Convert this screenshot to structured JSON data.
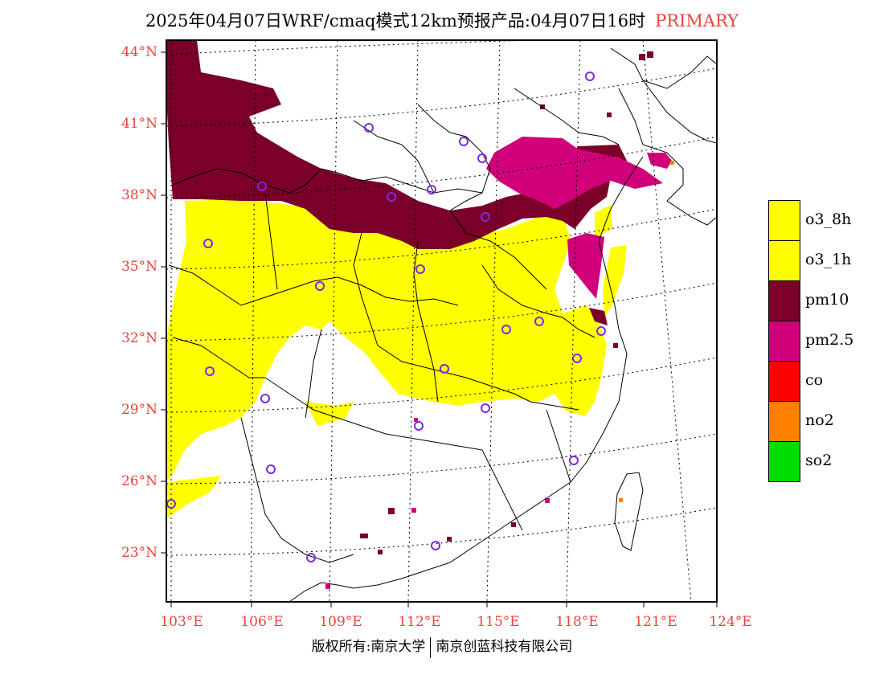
{
  "title": {
    "text": "2025年04月07日WRF/cmaq模式12km预报产品:04月07日16时",
    "tag": "PRIMARY"
  },
  "axes": {
    "lat_labels": [
      "44°N",
      "41°N",
      "38°N",
      "35°N",
      "32°N",
      "29°N",
      "26°N",
      "23°N"
    ],
    "lon_labels": [
      "103°E",
      "106°E",
      "109°E",
      "112°E",
      "115°E",
      "118°E",
      "121°E",
      "124°E"
    ]
  },
  "legend": [
    {
      "label": "o3_8h",
      "color": "#ffff00"
    },
    {
      "label": "o3_1h",
      "color": "#ffff00"
    },
    {
      "label": "pm10",
      "color": "#7a0029"
    },
    {
      "label": "pm2.5",
      "color": "#d1007a"
    },
    {
      "label": "co",
      "color": "#ff0000"
    },
    {
      "label": "no2",
      "color": "#ff7f00"
    },
    {
      "label": "so2",
      "color": "#00dd00"
    }
  ],
  "footer": {
    "left": "版权所有:南京大学",
    "right": "南京创蓝科技有限公司"
  },
  "colors": {
    "label_red": "#e8453c",
    "station_marker": "#7d2ae8"
  }
}
